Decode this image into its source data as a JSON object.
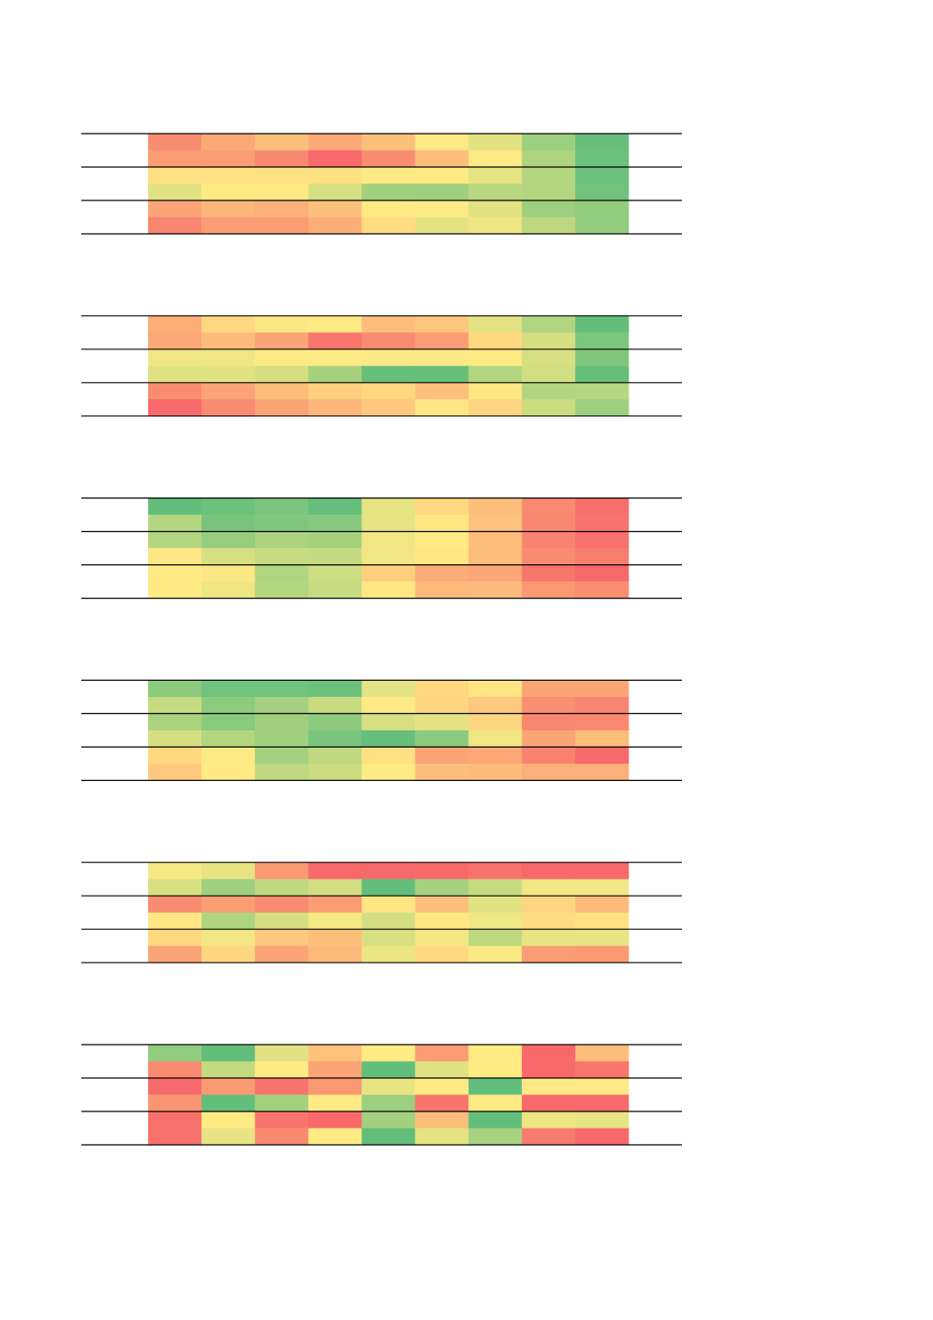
{
  "tables": [
    {
      "rows": [
        [
          "#f98d70",
          "#fca877",
          "#fdc07c",
          "#fca877",
          "#fdc07c",
          "#fde985",
          "#e2e283",
          "#9ccf7f",
          "#68bf7b"
        ],
        [
          "#fa9c74",
          "#fa9c74",
          "#f98870",
          "#f8696b",
          "#f98d70",
          "#fdbd7b",
          "#feea84",
          "#afd480",
          "#6cc17c"
        ],
        [
          "#fee182",
          "#fee182",
          "#fee182",
          "#fee182",
          "#feea84",
          "#feea84",
          "#e6e483",
          "#b5d680",
          "#6cc17c"
        ],
        [
          "#e1e283",
          "#feeb84",
          "#fee983",
          "#d6df82",
          "#a2d07f",
          "#9ecf7f",
          "#b8d780",
          "#b5d680",
          "#72c27c"
        ],
        [
          "#fba476",
          "#fdb67a",
          "#fcb079",
          "#fdc07c",
          "#feea84",
          "#feea84",
          "#e2e283",
          "#9dcf7f",
          "#94cc7e"
        ],
        [
          "#f98570",
          "#fa9d75",
          "#fa9d75",
          "#fcae78",
          "#ffdc81",
          "#e4e383",
          "#eee683",
          "#bdd881",
          "#94cc7e"
        ]
      ]
    },
    {
      "rows": [
        [
          "#fcad78",
          "#ffd880",
          "#fbe884",
          "#feea84",
          "#fdbe7c",
          "#fdc57d",
          "#e4e383",
          "#b0d580",
          "#63be7b"
        ],
        [
          "#fca877",
          "#fdbc7b",
          "#fba476",
          "#f8766d",
          "#f98b70",
          "#fa9c74",
          "#ffd880",
          "#d5df82",
          "#7dc67d"
        ],
        [
          "#f0e784",
          "#f0e784",
          "#feea84",
          "#feea84",
          "#feea84",
          "#feea84",
          "#fee983",
          "#d6df82",
          "#80c77d"
        ],
        [
          "#dfe283",
          "#e0e283",
          "#d5df82",
          "#a5d17f",
          "#68bf7b",
          "#68bf7b",
          "#b1d580",
          "#d2de82",
          "#66bf7b"
        ],
        [
          "#f98d70",
          "#fba476",
          "#fdbd7b",
          "#fed07e",
          "#ffd880",
          "#fdc07c",
          "#ffe884",
          "#b1d580",
          "#b6d680"
        ],
        [
          "#f8696b",
          "#f98b70",
          "#fba476",
          "#fcb67a",
          "#fec87e",
          "#fee783",
          "#fed580",
          "#cbdc81",
          "#9fd07f"
        ]
      ]
    },
    {
      "rows": [
        [
          "#63be7b",
          "#6cc17c",
          "#7bc57d",
          "#65be7b",
          "#e6e483",
          "#ffd880",
          "#fdc07c",
          "#f98a70",
          "#f8706c"
        ],
        [
          "#b4d680",
          "#78c47d",
          "#80c77d",
          "#87c97e",
          "#e6e483",
          "#ffe784",
          "#fdc37d",
          "#f98870",
          "#f8736d"
        ],
        [
          "#b5d680",
          "#96cd7e",
          "#abd380",
          "#a6d27f",
          "#f0e784",
          "#ffeb84",
          "#fdbd7b",
          "#f98370",
          "#f8716c"
        ],
        [
          "#ffe784",
          "#d6df82",
          "#c7db81",
          "#c6db81",
          "#f2e784",
          "#ffe784",
          "#fdbd7b",
          "#f98c70",
          "#f97e6f"
        ],
        [
          "#ffea84",
          "#fbe884",
          "#b0d580",
          "#cddd82",
          "#fed07e",
          "#fcac78",
          "#fca777",
          "#f8766d",
          "#f8696b"
        ],
        [
          "#ffea84",
          "#eee683",
          "#b3d580",
          "#c7db81",
          "#ffe884",
          "#fdb97a",
          "#fdbb7b",
          "#fa9873",
          "#f98e71"
        ]
      ]
    },
    {
      "rows": [
        [
          "#8ccb7e",
          "#70c27c",
          "#70c27c",
          "#6bc07c",
          "#e4e383",
          "#ffd880",
          "#fee582",
          "#fba576",
          "#fba576"
        ],
        [
          "#c6db81",
          "#8ccb7e",
          "#a3d17f",
          "#c7db81",
          "#feea84",
          "#ffd580",
          "#fec87e",
          "#fa8f71",
          "#f98570"
        ],
        [
          "#abd380",
          "#88ca7e",
          "#a2d07f",
          "#8dca7e",
          "#d7df82",
          "#e4e383",
          "#fed580",
          "#f98870",
          "#f98a70"
        ],
        [
          "#d5df82",
          "#b3d580",
          "#9fd07f",
          "#7ac47d",
          "#67bf7b",
          "#8ccb7e",
          "#f0e784",
          "#fba476",
          "#fdbd7b"
        ],
        [
          "#ffd880",
          "#feea84",
          "#a3d17f",
          "#bfd981",
          "#ffe183",
          "#fba576",
          "#fca977",
          "#f98170",
          "#f8696b"
        ],
        [
          "#fec97e",
          "#ffea84",
          "#c1d981",
          "#cbdc81",
          "#ffec84",
          "#fdc07c",
          "#fdbc7b",
          "#fcb079",
          "#fcb079"
        ]
      ]
    },
    {
      "rows": [
        [
          "#f6e884",
          "#e8e483",
          "#f99a73",
          "#f8696b",
          "#f8696b",
          "#f8696b",
          "#f8736d",
          "#f8696b",
          "#f8696b"
        ],
        [
          "#d9e082",
          "#9fd07f",
          "#c1d981",
          "#d2de82",
          "#63be7b",
          "#a6d27f",
          "#c7db81",
          "#f1e784",
          "#f1e784"
        ],
        [
          "#f98c70",
          "#fa9e74",
          "#f98c70",
          "#fa9c74",
          "#ffe683",
          "#fdc07c",
          "#e0e283",
          "#fed580",
          "#fdba7b"
        ],
        [
          "#ffe783",
          "#afd480",
          "#d5df82",
          "#f6e884",
          "#d3de82",
          "#ffe884",
          "#efe784",
          "#ffdb81",
          "#ffe182"
        ],
        [
          "#ffd880",
          "#f2e784",
          "#fec87e",
          "#fdc07c",
          "#d9e082",
          "#f4e784",
          "#bdd881",
          "#e8e483",
          "#e7e483"
        ],
        [
          "#fba576",
          "#ffd780",
          "#fba476",
          "#fdb97a",
          "#ece583",
          "#ffd880",
          "#fde984",
          "#fa9c74",
          "#fa9873"
        ]
      ]
    },
    {
      "rows": [
        [
          "#92cc7e",
          "#63be7b",
          "#e2e283",
          "#fec27d",
          "#ffeb84",
          "#fa9c74",
          "#ffea84",
          "#f8696b",
          "#fdbe7c"
        ],
        [
          "#f98a70",
          "#c4da81",
          "#ffeb84",
          "#fba476",
          "#63be7b",
          "#e1e283",
          "#ffeb84",
          "#f8696b",
          "#f8766d"
        ],
        [
          "#f8696b",
          "#fa9a73",
          "#f8756d",
          "#fa9873",
          "#e8e483",
          "#ffeb84",
          "#63be7b",
          "#ffe984",
          "#ffe984"
        ],
        [
          "#fa9572",
          "#63be7b",
          "#a4d17f",
          "#ffea84",
          "#9ccf7f",
          "#f8756d",
          "#ffea84",
          "#f8696b",
          "#f8696b"
        ],
        [
          "#f8716c",
          "#ffeb84",
          "#f8756d",
          "#f8696b",
          "#a4d17f",
          "#fdbe7c",
          "#63be7b",
          "#eee683",
          "#e7e483"
        ],
        [
          "#f8716c",
          "#e8e483",
          "#f98a70",
          "#ffeb84",
          "#63be7b",
          "#e5e483",
          "#a8d27f",
          "#f97a6e",
          "#f8696b"
        ]
      ]
    }
  ]
}
